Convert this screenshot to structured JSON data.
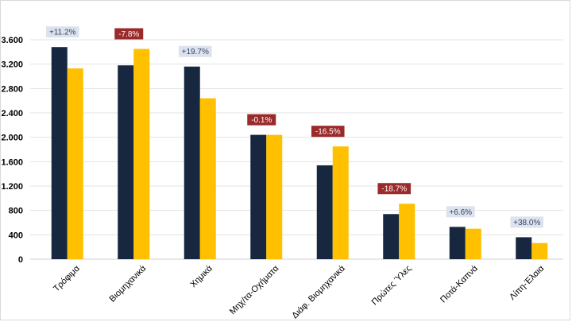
{
  "chart_data": {
    "type": "bar",
    "title": "",
    "xlabel": "",
    "ylabel": "",
    "ylim": [
      0,
      3600
    ],
    "yticks": [
      0,
      400,
      800,
      1200,
      1600,
      2000,
      2400,
      2800,
      3200,
      3600
    ],
    "ytick_labels": [
      "0",
      "400",
      "800",
      "1.200",
      "1.600",
      "2.000",
      "2.400",
      "2.800",
      "3.200",
      "3.600"
    ],
    "grid": true,
    "legend": "none",
    "categories": [
      "Τρόφιμα",
      "Βιομηχανικά",
      "Χημικά",
      "Μηχ/τα-Οχήματα",
      "Διάφ. Βιομηχανικά",
      "Πρώτες Ύλες",
      "Ποτά-Καπνά",
      "Λίπη-Έλαια"
    ],
    "series": [
      {
        "color": "#16273f",
        "values": [
          3480,
          3180,
          3160,
          2040,
          1540,
          740,
          530,
          360
        ]
      },
      {
        "color": "#ffc000",
        "values": [
          3130,
          3450,
          2640,
          2040,
          1850,
          910,
          500,
          265
        ]
      }
    ],
    "annotations": [
      "+11.2%",
      "-7.8%",
      "+19.7%",
      "-0.1%",
      "-16.5%",
      "-18.7%",
      "+6.6%",
      "+38.0%"
    ],
    "annotation_colors": {
      "positive_bg": "#dce3ee",
      "positive_text": "#3a4660",
      "negative_bg": "#9b2a2a",
      "negative_text": "#ffffff"
    }
  }
}
